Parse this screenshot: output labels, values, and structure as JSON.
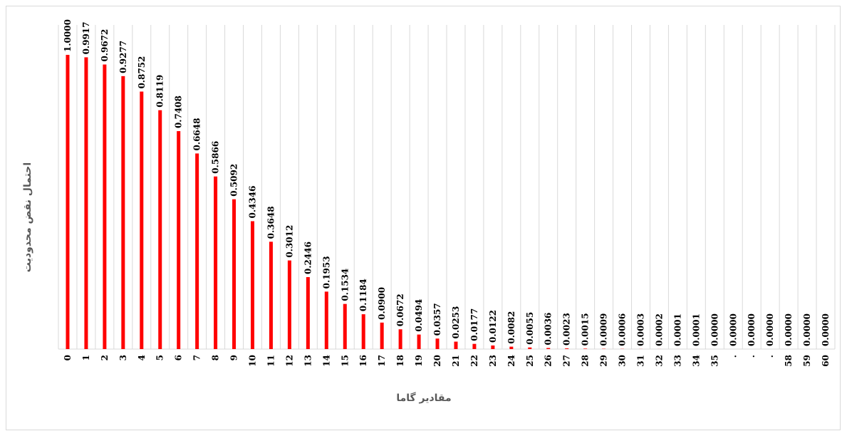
{
  "chart_data": {
    "type": "bar",
    "xlabel": "مقادیر گاما",
    "ylabel": "احتمال نقض محدودیت",
    "ylim": [
      0,
      1.0
    ],
    "grid": "vertical",
    "bar_color": "#ff0000",
    "grid_color": "#d9d9d9",
    "categories": [
      "0",
      "1",
      "2",
      "3",
      "4",
      "5",
      "6",
      "7",
      "8",
      "9",
      "10",
      "11",
      "12",
      "13",
      "14",
      "15",
      "16",
      "17",
      "18",
      "19",
      "20",
      "21",
      "22",
      "23",
      "24",
      "25",
      "26",
      "27",
      "28",
      "29",
      "30",
      "31",
      "32",
      "33",
      "34",
      "35",
      ".",
      ".",
      ".",
      "58",
      "59",
      "60"
    ],
    "values": [
      1.0,
      0.9917,
      0.9672,
      0.9277,
      0.8752,
      0.8119,
      0.7408,
      0.6648,
      0.5866,
      0.5092,
      0.4346,
      0.3648,
      0.3012,
      0.2446,
      0.1953,
      0.1534,
      0.1184,
      0.09,
      0.0672,
      0.0494,
      0.0357,
      0.0253,
      0.0177,
      0.0122,
      0.0082,
      0.0055,
      0.0036,
      0.0023,
      0.0015,
      0.0009,
      0.0006,
      0.0003,
      0.0002,
      0.0001,
      0.0001,
      0.0,
      0.0,
      0.0,
      0.0,
      0.0,
      0.0,
      0.0
    ],
    "data_labels": [
      "1.0000",
      "0.9917",
      "0.9672",
      "0.9277",
      "0.8752",
      "0.8119",
      "0.7408",
      "0.6648",
      "0.5866",
      "0.5092",
      "0.4346",
      "0.3648",
      "0.3012",
      "0.2446",
      "0.1953",
      "0.1534",
      "0.1184",
      "0.0900",
      "0.0672",
      "0.0494",
      "0.0357",
      "0.0253",
      "0.0177",
      "0.0122",
      "0.0082",
      "0.0055",
      "0.0036",
      "0.0023",
      "0.0015",
      "0.0009",
      "0.0006",
      "0.0003",
      "0.0002",
      "0.0001",
      "0.0001",
      "0.0000",
      "0.0000",
      "0.0000",
      "0.0000",
      "0.0000",
      "0.0000",
      "0.0000"
    ]
  }
}
